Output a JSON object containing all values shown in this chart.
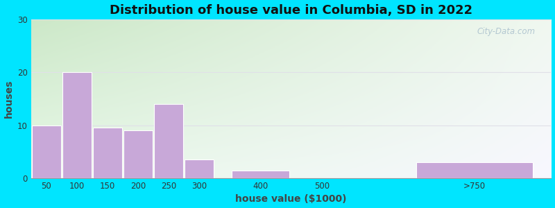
{
  "title": "Distribution of house value in Columbia, SD in 2022",
  "xlabel": "house value ($1000)",
  "ylabel": "houses",
  "bar_labels": [
    "50",
    "100",
    "150",
    "200",
    "250",
    "300",
    "400",
    "500",
    ">750"
  ],
  "bar_centers": [
    50,
    100,
    150,
    200,
    250,
    300,
    400,
    500,
    750
  ],
  "bar_widths": [
    50,
    50,
    50,
    50,
    50,
    50,
    100,
    100,
    200
  ],
  "bar_values": [
    10,
    20,
    9.5,
    9,
    14,
    3.5,
    1.5,
    0,
    3
  ],
  "bar_color": "#c8a8d8",
  "bar_edge_color": "#ffffff",
  "ylim": [
    0,
    30
  ],
  "yticks": [
    0,
    10,
    20,
    30
  ],
  "xlim_min": 25,
  "xlim_max": 875,
  "xtick_positions": [
    50,
    100,
    150,
    200,
    250,
    300,
    400,
    500,
    750
  ],
  "xtick_labels": [
    "50",
    "100",
    "150",
    "200",
    "250",
    "300",
    "400",
    "500",
    ">750"
  ],
  "bg_color_tl": "#cce8c8",
  "bg_color_tr": "#f0f8f0",
  "bg_color_br": "#f8f8ff",
  "outer_bg": "#00e5ff",
  "title_fontsize": 13,
  "axis_label_fontsize": 10,
  "watermark_text": "City-Data.com",
  "grid_color": "#e0e0e8",
  "grid_linewidth": 0.8
}
